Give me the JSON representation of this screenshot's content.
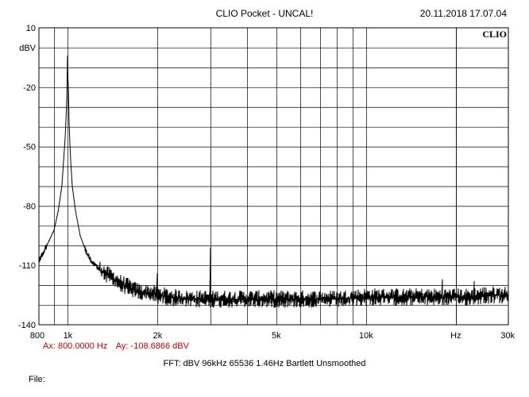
{
  "header": {
    "title": "CLIO Pocket - UNCAL!",
    "timestamp": "20.11.2018 17.07.04",
    "brand": "CLIO"
  },
  "cursor": {
    "ax": "Ax: 800.0000 Hz",
    "ay": "Ay: -108.6866 dBV"
  },
  "fft_settings": "FFT:  dBV  96kHz  65536  1.46Hz  Bartlett  Unsmoothed",
  "file_label": "File:",
  "colors": {
    "trace": "#000000",
    "grid": "#000000",
    "cursor_text": "#c00000"
  },
  "chart_data": {
    "type": "line",
    "x_scale": "log",
    "xlim": [
      800,
      30000
    ],
    "ylim": [
      -140,
      10
    ],
    "ylabel": "dBV",
    "grid": true,
    "y_ticks": [
      10,
      -20,
      -50,
      -80,
      -110,
      -140
    ],
    "y_tick_labels": [
      "10",
      "-20",
      "-50",
      "-80",
      "-110",
      "-140"
    ],
    "x_ticks": [
      800,
      1000,
      2000,
      5000,
      10000,
      20000,
      30000
    ],
    "x_tick_labels": [
      "800",
      "1k",
      "2k",
      "5k",
      "10k",
      "Hz",
      "30k"
    ],
    "series": [
      {
        "x": [
          800,
          850,
          900,
          930,
          955,
          970,
          980,
          990,
          996,
          1000,
          1004,
          1010,
          1020,
          1035,
          1060,
          1100,
          1150,
          1200,
          1300,
          1400,
          1500,
          1600,
          1700,
          1800,
          1900,
          2000,
          2200,
          2500,
          3000,
          3500,
          4000,
          5000,
          6000,
          7000,
          8000,
          10000,
          12000,
          15000,
          18000,
          20000,
          22000,
          25000,
          28000,
          30000
        ],
        "y": [
          -108,
          -100,
          -92,
          -82,
          -70,
          -55,
          -45,
          -30,
          -15,
          -4,
          -20,
          -38,
          -55,
          -70,
          -82,
          -95,
          -103,
          -108,
          -113,
          -116,
          -119,
          -121,
          -123,
          -124,
          -124,
          -125,
          -126,
          -127,
          -127,
          -127,
          -127,
          -127,
          -127,
          -127,
          -127,
          -126,
          -126,
          -126,
          -126,
          -126,
          -126,
          -125,
          -125,
          -125
        ]
      }
    ],
    "harmonic_spikes": [
      {
        "x": 2000,
        "y": -114
      },
      {
        "x": 3000,
        "y": -101
      },
      {
        "x": 18000,
        "y": -117
      },
      {
        "x": 23000,
        "y": -118
      }
    ]
  }
}
